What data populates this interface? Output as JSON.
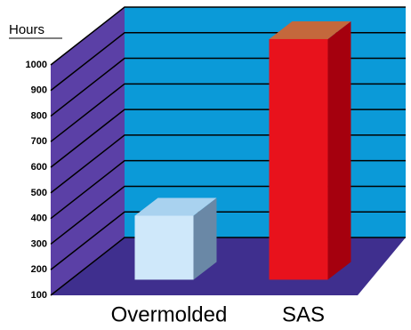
{
  "chart_data": {
    "type": "bar3d",
    "y_label": "Hours",
    "categories": [
      "Overmolded",
      "SAS"
    ],
    "values": [
      350,
      1040
    ],
    "colors": [
      "#cfe8fa",
      "#e8121c"
    ],
    "ylim": [
      100,
      1000
    ],
    "yticks": [
      100,
      200,
      300,
      400,
      500,
      600,
      700,
      800,
      900,
      1000
    ],
    "grid": true
  }
}
